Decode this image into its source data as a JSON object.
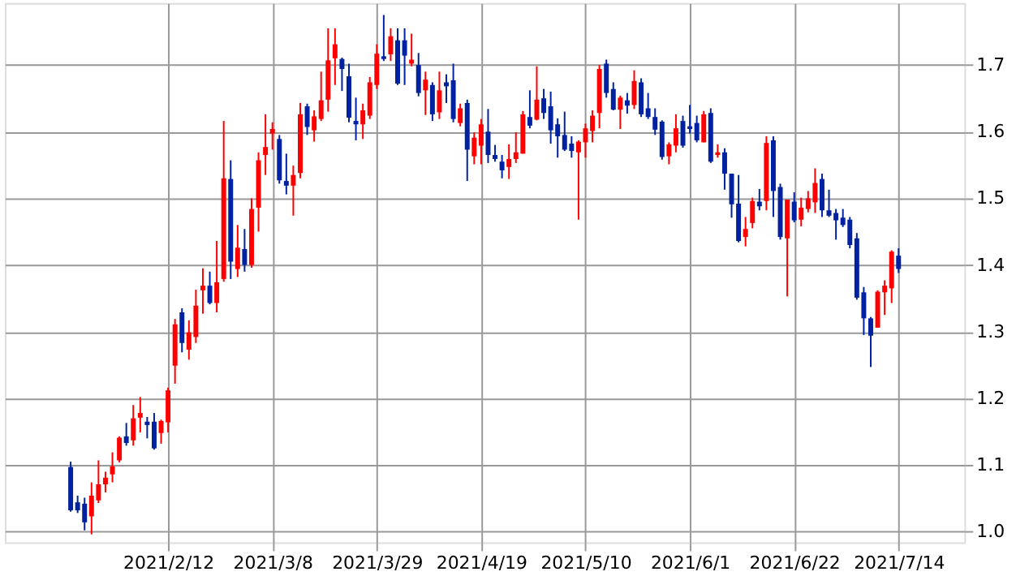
{
  "chart_data": {
    "type": "candlestick",
    "categories": [
      null,
      null,
      null,
      null,
      null,
      null,
      null,
      null,
      null,
      null,
      null,
      null,
      null,
      null,
      "2021/2/12",
      null,
      null,
      null,
      null,
      null,
      null,
      null,
      null,
      null,
      null,
      null,
      null,
      null,
      null,
      "2021/3/8",
      null,
      null,
      null,
      null,
      null,
      null,
      null,
      null,
      null,
      null,
      null,
      null,
      null,
      null,
      "2021/3/29",
      null,
      null,
      null,
      null,
      null,
      null,
      null,
      null,
      null,
      null,
      null,
      null,
      null,
      null,
      "2021/4/19",
      null,
      null,
      null,
      null,
      null,
      null,
      null,
      null,
      null,
      null,
      null,
      null,
      null,
      null,
      "2021/5/10",
      null,
      null,
      null,
      null,
      null,
      null,
      null,
      null,
      null,
      null,
      null,
      null,
      null,
      null,
      "2021/6/1",
      null,
      null,
      null,
      null,
      null,
      null,
      null,
      null,
      null,
      null,
      null,
      null,
      null,
      null,
      "2021/6/22",
      null,
      null,
      null,
      null,
      null,
      null,
      null,
      null,
      null,
      null,
      null,
      null,
      null,
      null,
      "2021/7/14"
    ],
    "ohlc": [
      [
        1.097,
        1.105,
        1.03,
        1.032
      ],
      [
        1.044,
        1.054,
        1.028,
        1.032
      ],
      [
        1.042,
        1.051,
        1.002,
        1.014
      ],
      [
        1.023,
        1.074,
        0.996,
        1.054
      ],
      [
        1.047,
        1.107,
        1.043,
        1.071
      ],
      [
        1.071,
        1.09,
        1.059,
        1.081
      ],
      [
        1.086,
        1.119,
        1.074,
        1.098
      ],
      [
        1.107,
        1.143,
        1.104,
        1.141
      ],
      [
        1.143,
        1.163,
        1.129,
        1.133
      ],
      [
        1.137,
        1.19,
        1.129,
        1.17
      ],
      [
        1.171,
        1.202,
        1.149,
        1.178
      ],
      [
        1.165,
        1.172,
        1.14,
        1.16
      ],
      [
        1.165,
        1.178,
        1.123,
        1.125
      ],
      [
        1.148,
        1.168,
        1.132,
        1.166
      ],
      [
        1.164,
        1.216,
        1.149,
        1.212
      ],
      [
        1.249,
        1.319,
        1.222,
        1.311
      ],
      [
        1.329,
        1.335,
        1.269,
        1.283
      ],
      [
        1.273,
        1.317,
        1.258,
        1.299
      ],
      [
        1.292,
        1.363,
        1.283,
        1.339
      ],
      [
        1.362,
        1.395,
        1.327,
        1.369
      ],
      [
        1.369,
        1.39,
        1.341,
        1.343
      ],
      [
        1.343,
        1.436,
        1.329,
        1.374
      ],
      [
        1.379,
        1.616,
        1.375,
        1.53
      ],
      [
        1.529,
        1.557,
        1.379,
        1.405
      ],
      [
        1.394,
        1.46,
        1.382,
        1.426
      ],
      [
        1.424,
        1.454,
        1.39,
        1.4
      ],
      [
        1.4,
        1.5,
        1.396,
        1.484
      ],
      [
        1.486,
        1.569,
        1.45,
        1.557
      ],
      [
        1.565,
        1.626,
        1.535,
        1.577
      ],
      [
        1.597,
        1.614,
        1.573,
        1.604
      ],
      [
        1.589,
        1.595,
        1.522,
        1.527
      ],
      [
        1.526,
        1.567,
        1.506,
        1.519
      ],
      [
        1.519,
        1.549,
        1.474,
        1.535
      ],
      [
        1.538,
        1.643,
        1.53,
        1.626
      ],
      [
        1.638,
        1.642,
        1.595,
        1.607
      ],
      [
        1.602,
        1.632,
        1.585,
        1.623
      ],
      [
        1.619,
        1.69,
        1.616,
        1.647
      ],
      [
        1.648,
        1.755,
        1.63,
        1.707
      ],
      [
        1.71,
        1.755,
        1.67,
        1.731
      ],
      [
        1.709,
        1.711,
        1.661,
        1.694
      ],
      [
        1.683,
        1.702,
        1.614,
        1.621
      ],
      [
        1.616,
        1.651,
        1.587,
        1.611
      ],
      [
        1.611,
        1.642,
        1.589,
        1.632
      ],
      [
        1.624,
        1.682,
        1.619,
        1.674
      ],
      [
        1.67,
        1.731,
        1.664,
        1.717
      ],
      [
        1.713,
        1.775,
        1.706,
        1.709
      ],
      [
        1.716,
        1.755,
        1.706,
        1.743
      ],
      [
        1.737,
        1.755,
        1.67,
        1.672
      ],
      [
        1.737,
        1.755,
        1.67,
        1.714
      ],
      [
        1.702,
        1.747,
        1.698,
        1.708
      ],
      [
        1.7,
        1.718,
        1.653,
        1.658
      ],
      [
        1.662,
        1.69,
        1.625,
        1.678
      ],
      [
        1.67,
        1.674,
        1.616,
        1.626
      ],
      [
        1.629,
        1.69,
        1.619,
        1.662
      ],
      [
        1.674,
        1.686,
        1.643,
        1.668
      ],
      [
        1.677,
        1.702,
        1.614,
        1.619
      ],
      [
        1.613,
        1.642,
        1.608,
        1.635
      ],
      [
        1.643,
        1.648,
        1.526,
        1.573
      ],
      [
        1.563,
        1.599,
        1.551,
        1.591
      ],
      [
        1.579,
        1.619,
        1.551,
        1.611
      ],
      [
        1.6,
        1.634,
        1.553,
        1.565
      ],
      [
        1.565,
        1.58,
        1.555,
        1.559
      ],
      [
        1.555,
        1.565,
        1.53,
        1.542
      ],
      [
        1.547,
        1.581,
        1.529,
        1.559
      ],
      [
        1.559,
        1.599,
        1.553,
        1.569
      ],
      [
        1.567,
        1.631,
        1.567,
        1.626
      ],
      [
        1.622,
        1.662,
        1.605,
        1.609
      ],
      [
        1.618,
        1.698,
        1.617,
        1.648
      ],
      [
        1.65,
        1.664,
        1.619,
        1.628
      ],
      [
        1.638,
        1.66,
        1.582,
        1.602
      ],
      [
        1.611,
        1.62,
        1.561,
        1.593
      ],
      [
        1.595,
        1.63,
        1.571,
        1.573
      ],
      [
        1.582,
        1.593,
        1.561,
        1.571
      ],
      [
        1.569,
        1.587,
        1.468,
        1.585
      ],
      [
        1.584,
        1.612,
        1.561,
        1.605
      ],
      [
        1.601,
        1.632,
        1.584,
        1.624
      ],
      [
        1.628,
        1.7,
        1.605,
        1.694
      ],
      [
        1.702,
        1.708,
        1.651,
        1.658
      ],
      [
        1.664,
        1.674,
        1.632,
        1.633
      ],
      [
        1.633,
        1.654,
        1.604,
        1.651
      ],
      [
        1.647,
        1.658,
        1.627,
        1.639
      ],
      [
        1.64,
        1.692,
        1.634,
        1.676
      ],
      [
        1.674,
        1.68,
        1.622,
        1.626
      ],
      [
        1.635,
        1.658,
        1.619,
        1.622
      ],
      [
        1.622,
        1.635,
        1.595,
        1.603
      ],
      [
        1.615,
        1.617,
        1.558,
        1.562
      ],
      [
        1.563,
        1.584,
        1.551,
        1.581
      ],
      [
        1.579,
        1.626,
        1.569,
        1.605
      ],
      [
        1.616,
        1.624,
        1.576,
        1.579
      ],
      [
        1.608,
        1.64,
        1.597,
        1.604
      ],
      [
        1.613,
        1.624,
        1.584,
        1.587
      ],
      [
        1.584,
        1.631,
        1.584,
        1.626
      ],
      [
        1.628,
        1.635,
        1.553,
        1.555
      ],
      [
        1.565,
        1.581,
        1.561,
        1.569
      ],
      [
        1.569,
        1.575,
        1.513,
        1.537
      ],
      [
        1.537,
        1.537,
        1.471,
        1.491
      ],
      [
        1.492,
        1.535,
        1.434,
        1.436
      ],
      [
        1.442,
        1.472,
        1.428,
        1.454
      ],
      [
        1.463,
        1.501,
        1.455,
        1.496
      ],
      [
        1.495,
        1.514,
        1.482,
        1.488
      ],
      [
        1.496,
        1.593,
        1.482,
        1.583
      ],
      [
        1.587,
        1.593,
        1.472,
        1.511
      ],
      [
        1.517,
        1.522,
        1.438,
        1.442
      ],
      [
        1.44,
        1.498,
        1.353,
        1.498
      ],
      [
        1.495,
        1.509,
        1.464,
        1.467
      ],
      [
        1.468,
        1.501,
        1.458,
        1.486
      ],
      [
        1.484,
        1.511,
        1.479,
        1.5
      ],
      [
        1.494,
        1.545,
        1.478,
        1.523
      ],
      [
        1.529,
        1.537,
        1.472,
        1.482
      ],
      [
        1.482,
        1.513,
        1.472,
        1.474
      ],
      [
        1.478,
        1.484,
        1.438,
        1.467
      ],
      [
        1.471,
        1.484,
        1.457,
        1.46
      ],
      [
        1.468,
        1.472,
        1.425,
        1.43
      ],
      [
        1.44,
        1.448,
        1.348,
        1.351
      ],
      [
        1.359,
        1.367,
        1.295,
        1.32
      ],
      [
        1.32,
        1.322,
        1.247,
        1.294
      ],
      [
        1.306,
        1.362,
        1.306,
        1.36
      ],
      [
        1.359,
        1.377,
        1.325,
        1.369
      ],
      [
        1.365,
        1.422,
        1.343,
        1.42
      ],
      [
        1.414,
        1.425,
        1.388,
        1.394
      ]
    ],
    "colors": [
      "#0022a0",
      "#0022a0",
      "#0022a0",
      "#ff0000",
      "#ff0000",
      "#ff0000",
      "#ff0000",
      "#ff0000",
      "#0022a0",
      "#ff0000",
      "#ff0000",
      "#0022a0",
      "#0022a0",
      "#ff0000",
      "#ff0000",
      "#ff0000",
      "#0022a0",
      "#ff0000",
      "#ff0000",
      "#ff0000",
      "#0022a0",
      "#ff0000",
      "#ff0000",
      "#0022a0",
      "#ff0000",
      "#0022a0",
      "#ff0000",
      "#ff0000",
      "#ff0000",
      "#ff0000",
      "#0022a0",
      "#0022a0",
      "#ff0000",
      "#ff0000",
      "#0022a0",
      "#ff0000",
      "#ff0000",
      "#ff0000",
      "#ff0000",
      "#0022a0",
      "#0022a0",
      "#0022a0",
      "#ff0000",
      "#ff0000",
      "#ff0000",
      "#0022a0",
      "#ff0000",
      "#0022a0",
      "#0022a0",
      "#ff0000",
      "#0022a0",
      "#ff0000",
      "#0022a0",
      "#ff0000",
      "#0022a0",
      "#0022a0",
      "#ff0000",
      "#0022a0",
      "#ff0000",
      "#ff0000",
      "#0022a0",
      "#0022a0",
      "#0022a0",
      "#ff0000",
      "#ff0000",
      "#ff0000",
      "#0022a0",
      "#ff0000",
      "#0022a0",
      "#0022a0",
      "#0022a0",
      "#0022a0",
      "#0022a0",
      "#ff0000",
      "#ff0000",
      "#ff0000",
      "#ff0000",
      "#0022a0",
      "#0022a0",
      "#ff0000",
      "#0022a0",
      "#ff0000",
      "#0022a0",
      "#0022a0",
      "#0022a0",
      "#0022a0",
      "#ff0000",
      "#ff0000",
      "#0022a0",
      "#0022a0",
      "#0022a0",
      "#ff0000",
      "#0022a0",
      "#ff0000",
      "#0022a0",
      "#0022a0",
      "#0022a0",
      "#ff0000",
      "#ff0000",
      "#0022a0",
      "#ff0000",
      "#0022a0",
      "#0022a0",
      "#ff0000",
      "#0022a0",
      "#ff0000",
      "#ff0000",
      "#ff0000",
      "#0022a0",
      "#0022a0",
      "#0022a0",
      "#0022a0",
      "#0022a0",
      "#0022a0",
      "#0022a0",
      "#0022a0",
      "#ff0000",
      "#ff0000",
      "#ff0000",
      "#0022a0"
    ],
    "ylim": [
      0.984,
      1.793
    ],
    "yticks": [
      {
        "value": 1,
        "label": "1.0"
      },
      1.1,
      1.2,
      1.3,
      1.4,
      1.5,
      1.6,
      1.7
    ],
    "grid": true
  }
}
